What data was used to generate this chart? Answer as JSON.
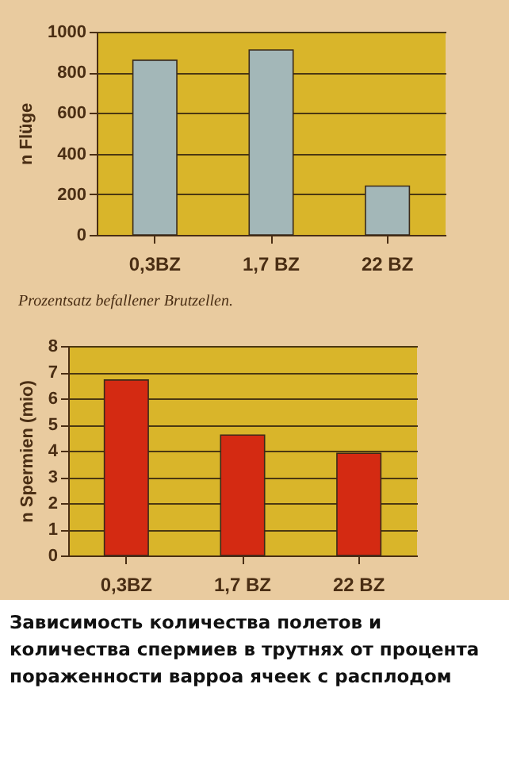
{
  "chart_data": [
    {
      "type": "bar",
      "categories": [
        "0,3BZ",
        "1,7 BZ",
        "22 BZ"
      ],
      "values": [
        860,
        910,
        240
      ],
      "color": "#a3b7b8",
      "ylabel": "n Flüge",
      "xlabel": "Prozentsatz befallener Brutzellen.",
      "ylim": [
        0,
        1000
      ],
      "yticks": [
        0,
        200,
        400,
        600,
        800,
        1000
      ],
      "grid": "y"
    },
    {
      "type": "bar",
      "categories": [
        "0,3BZ",
        "1,7 BZ",
        "22 BZ"
      ],
      "values": [
        6.7,
        4.6,
        3.9
      ],
      "color": "#d42a12",
      "ylabel": "n Spermien (mio)",
      "ylim": [
        0,
        8
      ],
      "yticks": [
        0,
        1,
        2,
        3,
        4,
        5,
        6,
        7,
        8
      ],
      "grid": "y",
      "annotations": [
        "Зависимость количества полетов и количества спермиев в трутнях от процента пораженности варроа ячеек с расплодом"
      ]
    }
  ]
}
